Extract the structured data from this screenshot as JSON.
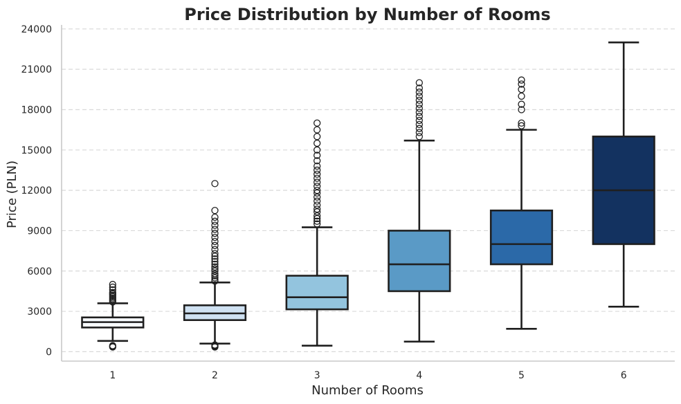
{
  "chart_data": {
    "type": "box",
    "title": "Price Distribution by Number of Rooms",
    "xlabel": "Number of Rooms",
    "ylabel": "Price (PLN)",
    "ylim": [
      -700,
      24300
    ],
    "yticks": [
      0,
      3000,
      6000,
      9000,
      12000,
      15000,
      18000,
      21000,
      24000
    ],
    "grid": true,
    "categories": [
      "1",
      "2",
      "3",
      "4",
      "5",
      "6"
    ],
    "boxes": [
      {
        "category": "1",
        "min": 800,
        "q1": 1800,
        "median": 2200,
        "q3": 2550,
        "max": 3600,
        "color": "#f7fbff",
        "outliers": [
          350,
          400,
          450,
          3700,
          3800,
          3900,
          4000,
          4100,
          4200,
          4300,
          4400,
          4600,
          4800,
          5000
        ]
      },
      {
        "category": "2",
        "min": 600,
        "q1": 2350,
        "median": 2850,
        "q3": 3450,
        "max": 5150,
        "color": "#cfe1f2",
        "outliers": [
          350,
          400,
          450,
          500,
          5250,
          5350,
          5500,
          5650,
          5800,
          6000,
          6150,
          6300,
          6500,
          6700,
          6900,
          7100,
          7300,
          7600,
          7900,
          8200,
          8500,
          8800,
          9100,
          9400,
          9700,
          10000,
          10500,
          12500
        ]
      },
      {
        "category": "3",
        "min": 450,
        "q1": 3150,
        "median": 4050,
        "q3": 5650,
        "max": 9250,
        "color": "#93c4de",
        "outliers": [
          9500,
          9700,
          9900,
          10100,
          10400,
          10600,
          10900,
          11200,
          11500,
          11800,
          12000,
          12300,
          12600,
          12900,
          13200,
          13500,
          13800,
          14200,
          14600,
          15000,
          15500,
          16000,
          16500,
          17000
        ]
      },
      {
        "category": "4",
        "min": 750,
        "q1": 4500,
        "median": 6500,
        "q3": 9000,
        "max": 15700,
        "color": "#5a9ac6",
        "outliers": [
          16000,
          16300,
          16600,
          16900,
          17200,
          17500,
          17800,
          18100,
          18400,
          18700,
          19000,
          19300,
          19600,
          20000
        ]
      },
      {
        "category": "5",
        "min": 1700,
        "q1": 6500,
        "median": 8000,
        "q3": 10500,
        "max": 16500,
        "color": "#2b69a8",
        "outliers": [
          16800,
          17000,
          18000,
          18400,
          19000,
          19500,
          19900,
          20200
        ]
      },
      {
        "category": "6",
        "min": 3350,
        "q1": 8000,
        "median": 12000,
        "q3": 16000,
        "max": 23000,
        "color": "#133260",
        "outliers": []
      }
    ]
  }
}
